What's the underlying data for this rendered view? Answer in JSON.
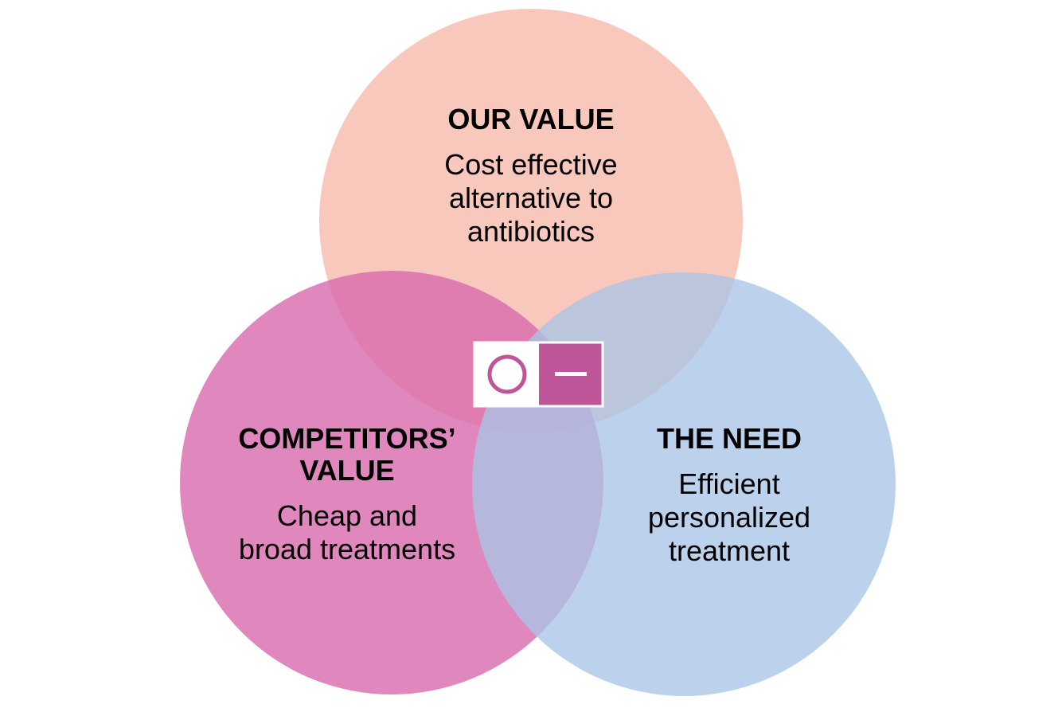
{
  "colors": {
    "our_value_circle": "#f6b6a6",
    "competitors_circle": "#d86aad",
    "need_circle": "#a9c4e6",
    "logo_pink": "#c0569a",
    "logo_white": "#ffffff"
  },
  "circles": {
    "our_value": {
      "title": "OUR VALUE",
      "description": "Cost effective\nalternative to\nantibiotics"
    },
    "competitors_value": {
      "title": "COMPETITORS’\nVALUE",
      "description": "Cheap and\nbroad treatments"
    },
    "the_need": {
      "title": "THE NEED",
      "description": "Efficient\npersonalized\ntreatment"
    }
  },
  "center_logo": {
    "icon": "circle-minus-logo-icon"
  }
}
